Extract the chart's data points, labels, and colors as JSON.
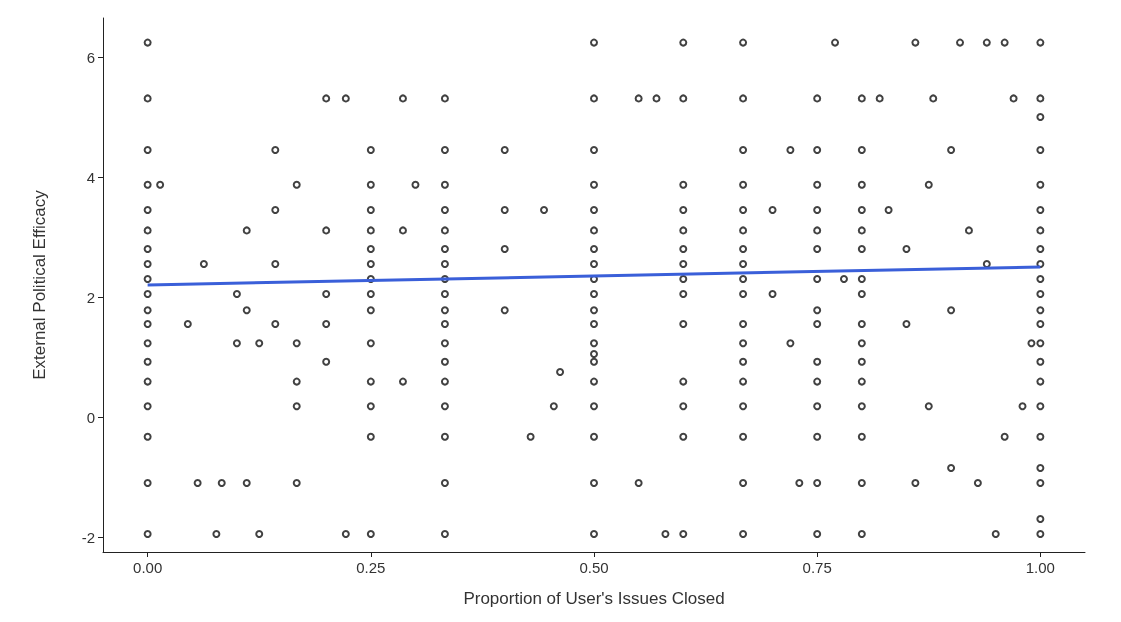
{
  "chart_data": {
    "type": "scatter",
    "xlabel": "Proportion of User's Issues Closed",
    "ylabel": "External Political Efficacy",
    "xlim": [
      -0.05,
      1.05
    ],
    "ylim": [
      -2.25,
      6.65
    ],
    "xticks": [
      {
        "value": 0,
        "label": "0.00"
      },
      {
        "value": 0.25,
        "label": "0.25"
      },
      {
        "value": 0.5,
        "label": "0.50"
      },
      {
        "value": 0.75,
        "label": "0.75"
      },
      {
        "value": 1,
        "label": "1.00"
      }
    ],
    "yticks": [
      -2,
      0,
      2,
      4,
      6
    ],
    "grid": false,
    "marker": "circle",
    "series": [
      {
        "color": "#111111",
        "x": [
          0,
          0,
          0,
          0,
          0,
          0,
          0,
          0,
          0,
          0,
          0,
          0,
          0,
          0,
          0,
          0,
          0,
          0,
          0,
          1,
          1,
          1,
          1,
          1,
          1,
          1,
          1,
          1,
          1,
          1,
          1,
          1,
          1,
          1,
          1,
          1,
          1,
          1,
          1,
          1,
          1,
          0.5,
          0.5,
          0.5,
          0.5,
          0.5,
          0.5,
          0.5,
          0.5,
          0.5,
          0.5,
          0.5,
          0.5,
          0.5,
          0.5,
          0.5,
          0.5,
          0.5,
          0.5,
          0.5,
          0.5,
          0.333,
          0.333,
          0.333,
          0.333,
          0.333,
          0.333,
          0.333,
          0.333,
          0.333,
          0.333,
          0.333,
          0.333,
          0.333,
          0.333,
          0.333,
          0.333,
          0.333,
          0.333,
          0.25,
          0.25,
          0.25,
          0.25,
          0.25,
          0.25,
          0.25,
          0.25,
          0.25,
          0.25,
          0.25,
          0.25,
          0.25,
          0.25,
          0.667,
          0.667,
          0.667,
          0.667,
          0.667,
          0.667,
          0.667,
          0.667,
          0.667,
          0.667,
          0.667,
          0.667,
          0.667,
          0.667,
          0.667,
          0.667,
          0.667,
          0.667,
          0.75,
          0.75,
          0.75,
          0.75,
          0.75,
          0.75,
          0.75,
          0.75,
          0.75,
          0.75,
          0.75,
          0.75,
          0.75,
          0.75,
          0.75,
          0.8,
          0.8,
          0.8,
          0.8,
          0.8,
          0.8,
          0.8,
          0.8,
          0.8,
          0.8,
          0.8,
          0.8,
          0.8,
          0.8,
          0.8,
          0.8,
          0.6,
          0.6,
          0.6,
          0.6,
          0.6,
          0.6,
          0.6,
          0.6,
          0.6,
          0.6,
          0.6,
          0.6,
          0.6,
          0.6,
          0.014,
          0.045,
          0.063,
          0.056,
          0.083,
          0.077,
          0.1,
          0.1,
          0.111,
          0.111,
          0.111,
          0.125,
          0.125,
          0.143,
          0.143,
          0.143,
          0.143,
          0.167,
          0.167,
          0.167,
          0.167,
          0.167,
          0.2,
          0.2,
          0.2,
          0.2,
          0.2,
          0.222,
          0.222,
          0.286,
          0.286,
          0.286,
          0.3,
          0.4,
          0.4,
          0.4,
          0.4,
          0.429,
          0.444,
          0.462,
          0.455,
          0.55,
          0.57,
          0.55,
          0.58,
          0.7,
          0.7,
          0.72,
          0.72,
          0.73,
          0.77,
          0.78,
          0.82,
          0.83,
          0.85,
          0.85,
          0.86,
          0.86,
          0.875,
          0.875,
          0.88,
          0.9,
          0.9,
          0.9,
          0.91,
          0.92,
          0.93,
          0.94,
          0.94,
          0.95,
          0.96,
          0.96,
          0.97,
          0.98,
          0.99
        ],
        "values": [
          6.24,
          5.31,
          4.45,
          3.87,
          3.45,
          3.11,
          2.8,
          2.55,
          2.3,
          2.05,
          1.78,
          1.55,
          1.23,
          0.92,
          0.59,
          0.18,
          -0.33,
          -1.1,
          -1.95,
          6.24,
          5.31,
          5.0,
          4.45,
          3.87,
          3.45,
          3.11,
          2.8,
          2.55,
          2.3,
          2.05,
          1.78,
          1.55,
          1.23,
          0.92,
          0.59,
          0.18,
          -0.33,
          -0.85,
          -1.1,
          -1.7,
          -1.95,
          6.24,
          5.31,
          4.45,
          3.87,
          3.45,
          3.11,
          2.8,
          2.55,
          2.3,
          2.05,
          1.78,
          1.55,
          1.23,
          1.05,
          0.92,
          0.59,
          0.18,
          -0.33,
          -1.1,
          -1.95,
          5.31,
          4.45,
          3.87,
          3.45,
          3.11,
          2.8,
          2.55,
          2.3,
          2.05,
          1.78,
          1.55,
          1.23,
          0.92,
          0.59,
          0.18,
          -0.33,
          -1.1,
          -1.95,
          4.45,
          3.87,
          3.45,
          3.11,
          2.8,
          2.55,
          2.3,
          2.05,
          1.78,
          1.23,
          0.59,
          0.18,
          -0.33,
          -1.95,
          6.24,
          5.31,
          4.45,
          3.87,
          3.45,
          3.11,
          2.8,
          2.55,
          2.3,
          2.05,
          1.55,
          1.23,
          0.92,
          0.59,
          0.18,
          -0.33,
          -1.1,
          -1.95,
          5.31,
          4.45,
          3.87,
          3.45,
          3.11,
          2.8,
          2.3,
          1.78,
          1.55,
          0.92,
          0.59,
          0.18,
          -0.33,
          -1.1,
          -1.95,
          5.31,
          4.45,
          3.87,
          3.45,
          3.11,
          2.8,
          2.3,
          2.05,
          1.55,
          1.23,
          0.92,
          0.59,
          0.18,
          -0.33,
          -1.1,
          -1.95,
          6.24,
          5.31,
          3.87,
          3.45,
          3.11,
          2.8,
          2.55,
          2.3,
          2.05,
          1.55,
          0.59,
          0.18,
          -0.33,
          -1.95,
          3.87,
          1.55,
          2.55,
          -1.1,
          -1.1,
          -1.95,
          2.05,
          1.23,
          3.11,
          1.78,
          -1.1,
          1.23,
          -1.95,
          4.45,
          3.45,
          2.55,
          1.55,
          3.87,
          1.23,
          0.59,
          0.18,
          -1.1,
          5.31,
          3.11,
          2.05,
          1.55,
          0.92,
          5.31,
          -1.95,
          5.31,
          3.11,
          0.59,
          3.87,
          4.45,
          3.45,
          2.8,
          1.78,
          -0.33,
          3.45,
          0.75,
          0.18,
          5.31,
          5.31,
          -1.1,
          -1.95,
          3.45,
          2.05,
          4.45,
          1.23,
          -1.1,
          6.24,
          2.3,
          5.31,
          3.45,
          2.8,
          1.55,
          6.24,
          -1.1,
          3.87,
          0.18,
          5.31,
          4.45,
          -0.85,
          1.78,
          6.24,
          3.11,
          -1.1,
          6.24,
          2.55,
          -1.95,
          6.24,
          -0.33,
          5.31,
          0.18,
          1.23
        ]
      },
      {
        "type": "line",
        "color": "#3a5fd9",
        "marker": "none",
        "line_style": "solid",
        "x": [
          0,
          1
        ],
        "values": [
          2.2,
          2.5
        ]
      }
    ]
  }
}
